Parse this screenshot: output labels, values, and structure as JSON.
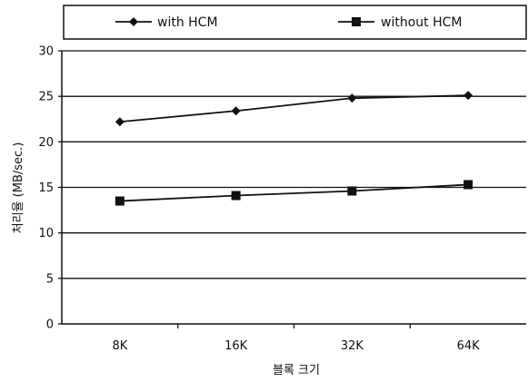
{
  "chart_data": {
    "type": "line",
    "categories": [
      "8K",
      "16K",
      "32K",
      "64K"
    ],
    "series": [
      {
        "name": "with HCM",
        "values": [
          22.2,
          23.4,
          24.8,
          25.1
        ],
        "marker": "diamond",
        "color": "#111111"
      },
      {
        "name": "without HCM",
        "values": [
          13.5,
          14.1,
          14.6,
          15.3
        ],
        "marker": "square",
        "color": "#111111"
      }
    ],
    "xlabel": "블록 크기",
    "ylabel": "처리율 (MB/sec.)",
    "ylim": [
      0,
      30
    ],
    "yticks": [
      0,
      5,
      10,
      15,
      20,
      25,
      30
    ],
    "grid": true,
    "legend_position": "top"
  }
}
